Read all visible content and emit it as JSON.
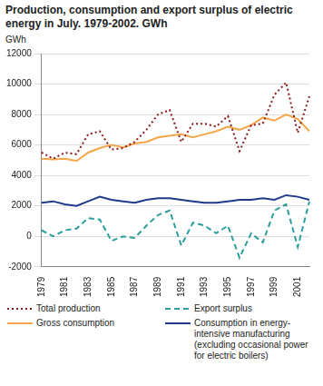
{
  "chart_data": {
    "type": "line",
    "title": "Production, consumption and export surplus of electric energy in July. 1979-2002. GWh",
    "y_label": "GWh",
    "categories": [
      "1979",
      null,
      "1981",
      null,
      "1983",
      null,
      "1985",
      null,
      "1987",
      null,
      "1989",
      null,
      "1991",
      null,
      "1993",
      null,
      "1995",
      null,
      "1997",
      null,
      "1999",
      null,
      "2001",
      null
    ],
    "series": [
      {
        "name": "Total production",
        "color": "#8b1a1a",
        "line_style": "dotted",
        "values": [
          5500,
          5100,
          5500,
          5400,
          6700,
          6900,
          5700,
          5800,
          6200,
          7000,
          8000,
          8300,
          6200,
          7400,
          7400,
          7200,
          7900,
          5600,
          7300,
          7400,
          9300,
          10100,
          6800,
          9200
        ]
      },
      {
        "name": "Export surplus",
        "color": "#2a9d9d",
        "line_style": "dashed",
        "values": [
          400,
          0,
          400,
          500,
          1200,
          1100,
          -300,
          0,
          -100,
          700,
          1400,
          1700,
          -600,
          900,
          700,
          200,
          700,
          -1400,
          200,
          -400,
          1700,
          2100,
          -700,
          2300
        ]
      },
      {
        "name": "Gross consumption",
        "color": "#f5a54a",
        "line_style": "solid",
        "values": [
          5100,
          5050,
          5100,
          4950,
          5500,
          5800,
          6000,
          5850,
          6100,
          6200,
          6500,
          6600,
          6700,
          6500,
          6700,
          6900,
          7200,
          7000,
          7300,
          7800,
          7600,
          8000,
          7700,
          6900
        ]
      },
      {
        "name": "Consumption in energy-intensive manufacturing (excluding occasional power for electric boilers)",
        "color": "#1f3a8a",
        "line_style": "solid",
        "values": [
          2200,
          2300,
          2100,
          2000,
          2300,
          2600,
          2400,
          2300,
          2200,
          2400,
          2500,
          2500,
          2400,
          2300,
          2200,
          2200,
          2300,
          2400,
          2400,
          2500,
          2400,
          2700,
          2600,
          2400
        ]
      }
    ],
    "ylim": [
      -2000,
      12000
    ],
    "yticks": [
      -2000,
      0,
      2000,
      4000,
      6000,
      8000,
      10000,
      12000
    ],
    "grid": true,
    "legend": "bottom"
  }
}
